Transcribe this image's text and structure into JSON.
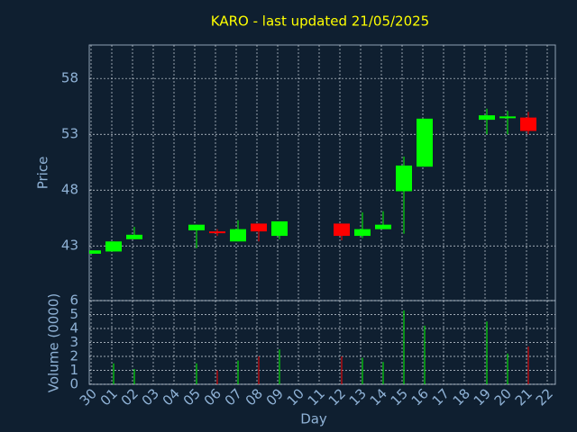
{
  "chart_data": {
    "type": "candlestick",
    "title": "KARO - last updated 21/05/2025",
    "xlabel": "Day",
    "ylabel": "Price",
    "categories": [
      "30",
      "01",
      "02",
      "03",
      "04",
      "05",
      "06",
      "07",
      "08",
      "09",
      "10",
      "11",
      "12",
      "13",
      "14",
      "15",
      "16",
      "17",
      "18",
      "19",
      "20",
      "21",
      "22"
    ],
    "open": [
      42.3,
      42.5,
      43.6,
      null,
      null,
      44.4,
      44.3,
      43.4,
      45.0,
      43.9,
      null,
      null,
      45.0,
      43.9,
      44.5,
      47.9,
      50.1,
      null,
      null,
      54.3,
      54.5,
      54.5,
      null
    ],
    "high": [
      42.6,
      43.4,
      44.7,
      null,
      null,
      44.9,
      44.5,
      45.3,
      45.0,
      45.2,
      null,
      null,
      45.0,
      46.0,
      46.1,
      51.0,
      54.4,
      null,
      null,
      55.3,
      55.1,
      55.0,
      null
    ],
    "low": [
      42.3,
      42.5,
      43.6,
      null,
      null,
      42.8,
      43.9,
      43.4,
      43.4,
      43.6,
      null,
      null,
      43.5,
      43.7,
      44.5,
      44.1,
      50.1,
      null,
      null,
      53.0,
      53.0,
      53.0,
      null
    ],
    "close": [
      42.6,
      43.4,
      44.0,
      null,
      null,
      44.9,
      44.2,
      44.5,
      44.3,
      45.2,
      null,
      null,
      43.9,
      44.5,
      44.9,
      50.2,
      54.4,
      null,
      null,
      54.7,
      54.6,
      53.3,
      null
    ],
    "up_color": "#00ff00",
    "down_color": "#ff0000",
    "ylim": [
      38.1,
      61
    ],
    "yticks": [
      43,
      48,
      53,
      58
    ],
    "grid": true,
    "volume": {
      "ylabel": "Volume (0000)",
      "ylim": [
        0,
        6
      ],
      "yticks": [
        0,
        1,
        2,
        3,
        4,
        5,
        6
      ],
      "values": [
        0,
        1.5,
        1.1,
        null,
        null,
        1.5,
        1.0,
        1.7,
        2.0,
        2.5,
        null,
        null,
        2.0,
        1.9,
        1.6,
        5.3,
        4.2,
        null,
        null,
        4.5,
        2.2,
        2.7,
        null
      ]
    }
  }
}
